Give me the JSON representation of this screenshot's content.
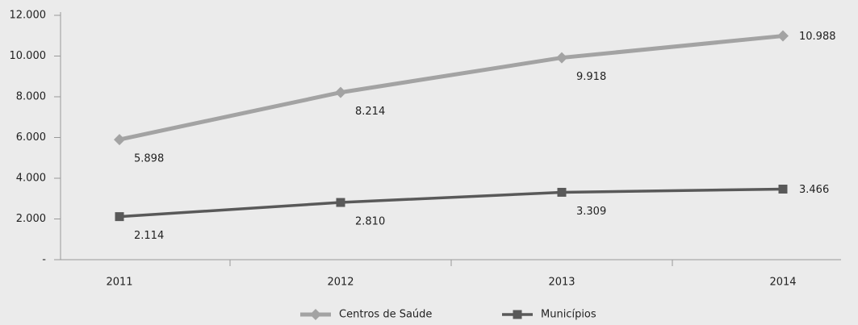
{
  "chart_data": {
    "type": "line",
    "categories": [
      "2011",
      "2012",
      "2013",
      "2014"
    ],
    "series": [
      {
        "name": "Centros de Saúde",
        "color": "#a3a3a3",
        "marker": "diamond",
        "values": [
          5898,
          8214,
          9918,
          10988
        ],
        "value_labels": [
          "5.898",
          "8.214",
          "9.918",
          "10.988"
        ]
      },
      {
        "name": "Municípios",
        "color": "#595959",
        "marker": "square",
        "values": [
          2114,
          2810,
          3309,
          3466
        ],
        "value_labels": [
          "2.114",
          "2.810",
          "3.309",
          "3.466"
        ]
      }
    ],
    "ylim": [
      0,
      12000
    ],
    "yticks": [
      {
        "value": 0,
        "label": "-"
      },
      {
        "value": 2000,
        "label": "2.000"
      },
      {
        "value": 4000,
        "label": "4.000"
      },
      {
        "value": 6000,
        "label": "6.000"
      },
      {
        "value": 8000,
        "label": "8.000"
      },
      {
        "value": 10000,
        "label": "10.000"
      },
      {
        "value": 12000,
        "label": "12.000"
      }
    ],
    "grid": false,
    "legend": "bottom"
  }
}
